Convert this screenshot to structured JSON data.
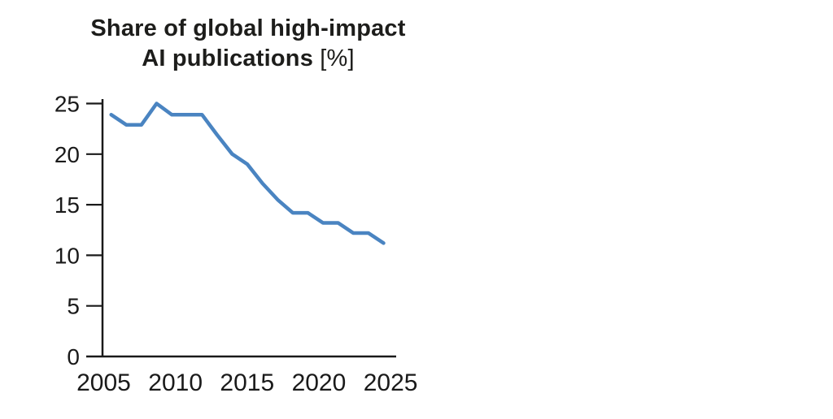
{
  "title": {
    "line1": "Share of global high-impact",
    "line2": "AI publications",
    "unit": "[%]"
  },
  "chart_data": {
    "type": "line",
    "title": "Share of global high-impact AI publications [%]",
    "xlabel": "",
    "ylabel": "",
    "x": [
      2006,
      2007,
      2008,
      2009,
      2010,
      2011,
      2012,
      2013,
      2014,
      2015,
      2016,
      2017,
      2018,
      2019,
      2020,
      2021,
      2022,
      2023,
      2024
    ],
    "series": [
      {
        "name": "Share of global high-impact AI publications",
        "values": [
          23.9,
          22.9,
          22.9,
          25.0,
          23.9,
          23.9,
          23.9,
          21.9,
          20.0,
          19.0,
          17.1,
          15.5,
          14.2,
          14.2,
          13.2,
          13.2,
          12.2,
          12.2,
          11.2
        ]
      }
    ],
    "x_ticks": [
      "2005",
      "2010",
      "2015",
      "2020",
      "2025"
    ],
    "x_tick_years": [
      2005,
      2010,
      2015,
      2020,
      2025
    ],
    "y_ticks": [
      "0",
      "5",
      "10",
      "15",
      "20",
      "25"
    ],
    "y_tick_values": [
      0,
      5,
      10,
      15,
      20,
      25
    ],
    "xlim": [
      2005,
      2025
    ],
    "ylim": [
      0,
      25
    ],
    "grid": false,
    "legend_position": "none"
  },
  "colors": {
    "line": "#4a84c1",
    "axis": "#1a1a1a",
    "tick_text": "#1a1a1a",
    "title_text": "#1d1d1b",
    "background": "#ffffff"
  }
}
